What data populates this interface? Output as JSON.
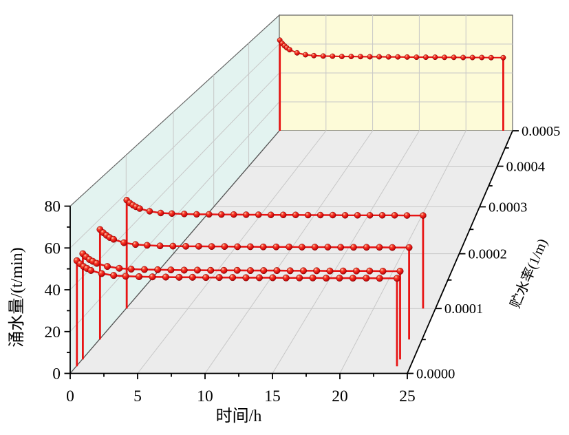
{
  "chart_data": {
    "type": "line",
    "projection": "3d-waterfall",
    "title": "",
    "xlabel": "时间/h",
    "ylabel": "涌水量/(t/min)",
    "zlabel": "贮水率(1/m)",
    "xlim": [
      0,
      25
    ],
    "ylim": [
      0,
      80
    ],
    "zlim": [
      0,
      0.0005
    ],
    "grid": true,
    "legend": false,
    "x_ticks": {
      "values": [
        0,
        5,
        10,
        15,
        20,
        25
      ],
      "labels": [
        "0",
        "5",
        "10",
        "15",
        "20",
        "25"
      ],
      "minor_step": 2.5
    },
    "y_ticks": {
      "values": [
        0,
        20,
        40,
        60,
        80
      ],
      "labels": [
        "0",
        "20",
        "40",
        "60",
        "80"
      ],
      "minor_step": 10
    },
    "z_ticks": {
      "values": [
        0,
        0.0001,
        0.0002,
        0.0003,
        0.0004,
        0.0005
      ],
      "labels": [
        "0.0000",
        "0.0001",
        "0.0002",
        "0.0003",
        "0.0004",
        "0.0005"
      ],
      "minor_step": 5e-05
    },
    "x": [
      0.05,
      0.3,
      0.55,
      0.8,
      1.1,
      1.9,
      2.8,
      3.7,
      4.7,
      5.7,
      6.7,
      7.7,
      8.7,
      9.7,
      10.7,
      11.7,
      12.7,
      13.7,
      14.7,
      15.7,
      16.7,
      17.7,
      18.7,
      19.7,
      20.7,
      21.7,
      22.7,
      24
    ],
    "series": [
      {
        "name": "0.00001",
        "z": 1e-05,
        "values": [
          51.0,
          49.5,
          48.2,
          47.3,
          46.3,
          44.8,
          43.9,
          43.5,
          43.3,
          43.2,
          43.1,
          43.0,
          43.0,
          42.9,
          42.9,
          42.9,
          42.8,
          42.8,
          42.8,
          42.7,
          42.7,
          42.7,
          42.6,
          42.6,
          42.6,
          42.6,
          42.5,
          42.5
        ]
      },
      {
        "name": "0.00002",
        "z": 2e-05,
        "values": [
          51.5,
          50.0,
          48.7,
          47.8,
          46.8,
          45.3,
          44.4,
          44.0,
          43.8,
          43.7,
          43.6,
          43.5,
          43.5,
          43.4,
          43.4,
          43.4,
          43.3,
          43.3,
          43.3,
          43.2,
          43.2,
          43.2,
          43.1,
          43.1,
          43.1,
          43.1,
          43.0,
          43.0
        ]
      },
      {
        "name": "0.00005",
        "z": 5e-05,
        "values": [
          55.0,
          53.4,
          52.1,
          51.0,
          50.1,
          48.4,
          47.5,
          47.1,
          46.8,
          46.7,
          46.6,
          46.6,
          46.5,
          46.5,
          46.4,
          46.4,
          46.3,
          46.3,
          46.3,
          46.2,
          46.2,
          46.2,
          46.1,
          46.1,
          46.1,
          46.1,
          46.0,
          46.0
        ]
      },
      {
        "name": "0.0001",
        "z": 0.0001,
        "values": [
          56.5,
          55.0,
          53.9,
          53.0,
          52.1,
          50.7,
          49.8,
          49.5,
          49.3,
          49.1,
          49.1,
          49.0,
          49.0,
          48.9,
          48.9,
          48.8,
          48.8,
          48.8,
          48.7,
          48.7,
          48.7,
          48.6,
          48.6,
          48.6,
          48.6,
          48.6,
          48.5,
          48.5
        ]
      },
      {
        "name": "0.0005",
        "z": 0.0005,
        "values": [
          62.7,
          60.5,
          58.8,
          57.4,
          56.1,
          53.9,
          52.6,
          52.0,
          51.7,
          51.6,
          51.4,
          51.4,
          51.3,
          51.2,
          51.2,
          51.1,
          51.1,
          51.0,
          50.9,
          50.9,
          50.9,
          50.8,
          50.8,
          50.7,
          50.7,
          50.7,
          50.6,
          50.6
        ]
      }
    ]
  },
  "colors": {
    "series": "#e81414",
    "ball_highlight": "#ffd2c2",
    "ball_mid": "#f4472e",
    "ball_core": "#e81414",
    "ball_dark": "#9c0505",
    "ball_stroke": "#7a0000",
    "wall_left": "#e3f3f0",
    "wall_back": "#fdfbd8",
    "floor": "#ececec",
    "grid": "#c7c7c7",
    "edge": "#666666",
    "axis": "#000000"
  }
}
